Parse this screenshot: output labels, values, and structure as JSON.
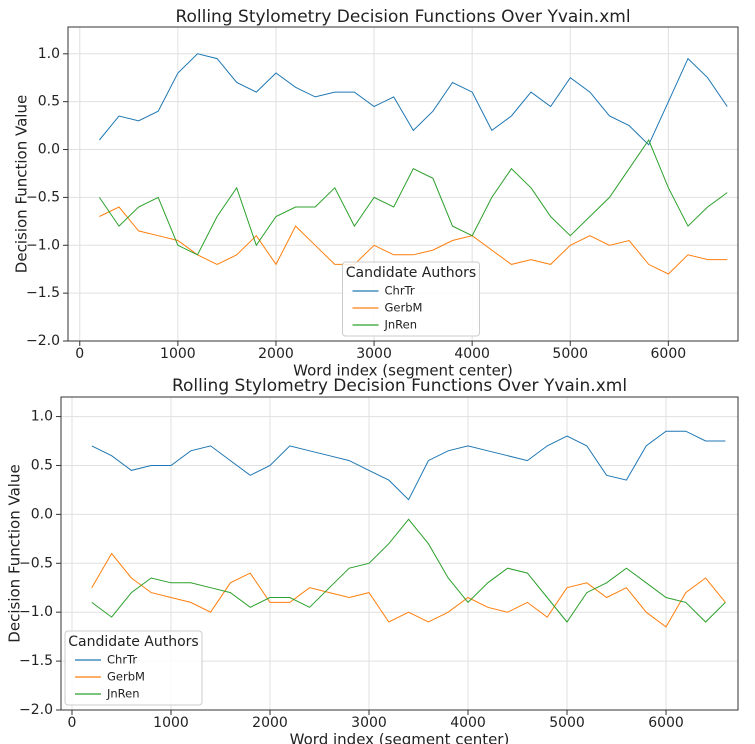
{
  "chart_data": [
    {
      "type": "line",
      "title": "Rolling Stylometry Decision Functions Over Yvain.xml",
      "x_label": "Word index (segment center)",
      "y_label": "Decision Function Value",
      "x": [
        200,
        400,
        600,
        800,
        1000,
        1200,
        1400,
        1600,
        1800,
        2000,
        2200,
        2400,
        2600,
        2800,
        3000,
        3200,
        3400,
        3600,
        3800,
        4000,
        4200,
        4400,
        4600,
        4800,
        5000,
        5200,
        5400,
        5600,
        5800,
        6000,
        6200,
        6400,
        6600
      ],
      "series": [
        {
          "name": "ChrTr",
          "color": "#1f77b4",
          "values": [
            0.1,
            0.35,
            0.3,
            0.4,
            0.8,
            1.0,
            0.95,
            0.7,
            0.6,
            0.8,
            0.65,
            0.55,
            0.6,
            0.6,
            0.45,
            0.55,
            0.2,
            0.4,
            0.7,
            0.6,
            0.2,
            0.35,
            0.6,
            0.45,
            0.75,
            0.6,
            0.35,
            0.25,
            0.05,
            0.5,
            0.95,
            0.75,
            0.45
          ]
        },
        {
          "name": "GerbM",
          "color": "#ff7f0e",
          "values": [
            -0.7,
            -0.6,
            -0.85,
            -0.9,
            -0.95,
            -1.1,
            -1.2,
            -1.1,
            -0.9,
            -1.2,
            -0.8,
            -1.0,
            -1.2,
            -1.2,
            -1.0,
            -1.1,
            -1.1,
            -1.05,
            -0.95,
            -0.9,
            -1.05,
            -1.2,
            -1.15,
            -1.2,
            -1.0,
            -0.9,
            -1.0,
            -0.95,
            -1.2,
            -1.3,
            -1.1,
            -1.15,
            -1.15
          ]
        },
        {
          "name": "JnRen",
          "color": "#2ca02c",
          "values": [
            -0.5,
            -0.8,
            -0.6,
            -0.5,
            -1.0,
            -1.1,
            -0.7,
            -0.4,
            -1.0,
            -0.7,
            -0.6,
            -0.6,
            -0.4,
            -0.8,
            -0.5,
            -0.6,
            -0.2,
            -0.3,
            -0.8,
            -0.9,
            -0.5,
            -0.2,
            -0.4,
            -0.7,
            -0.9,
            -0.7,
            -0.5,
            -0.2,
            0.1,
            -0.4,
            -0.8,
            -0.6,
            -0.45
          ]
        }
      ],
      "xlim": [
        -120,
        6710
      ],
      "xticks": [
        0,
        1000,
        2000,
        3000,
        4000,
        5000,
        6000
      ],
      "ylim": [
        -2.0,
        1.28
      ],
      "yticks": [
        {
          "value": -2.0,
          "label": "−2.0"
        },
        {
          "value": -1.5,
          "label": "−1.5"
        },
        {
          "value": -1.0,
          "label": "−1.0"
        },
        {
          "value": -0.5,
          "label": "−0.5"
        },
        {
          "value": 0,
          "label": "0.0"
        },
        0.5,
        {
          "value": 1.0,
          "label": "1.0"
        }
      ],
      "grid": true,
      "legend_title": "Candidate Authors",
      "legend_loc": "lower center"
    },
    {
      "type": "line",
      "title": "Rolling Stylometry Decision Functions Over Yvain.xml",
      "x_label": "Word index (segment center)",
      "y_label": "Decision Function Value",
      "x": [
        200,
        400,
        600,
        800,
        1000,
        1200,
        1400,
        1600,
        1800,
        2000,
        2200,
        2400,
        2600,
        2800,
        3000,
        3200,
        3400,
        3600,
        3800,
        4000,
        4200,
        4400,
        4600,
        4800,
        5000,
        5200,
        5400,
        5600,
        5800,
        6000,
        6200,
        6400,
        6600
      ],
      "series": [
        {
          "name": "ChrTr",
          "color": "#1f77b4",
          "values": [
            0.7,
            0.6,
            0.45,
            0.5,
            0.5,
            0.65,
            0.7,
            0.55,
            0.4,
            0.5,
            0.7,
            0.65,
            0.6,
            0.55,
            0.45,
            0.35,
            0.15,
            0.55,
            0.65,
            0.7,
            0.65,
            0.6,
            0.55,
            0.7,
            0.8,
            0.7,
            0.4,
            0.35,
            0.7,
            0.85,
            0.85,
            0.75,
            0.75
          ]
        },
        {
          "name": "GerbM",
          "color": "#ff7f0e",
          "values": [
            -0.75,
            -0.4,
            -0.65,
            -0.8,
            -0.85,
            -0.9,
            -1.0,
            -0.7,
            -0.6,
            -0.9,
            -0.9,
            -0.75,
            -0.8,
            -0.85,
            -0.8,
            -1.1,
            -1.0,
            -1.1,
            -1.0,
            -0.85,
            -0.95,
            -1.0,
            -0.9,
            -1.05,
            -0.75,
            -0.7,
            -0.85,
            -0.75,
            -1.0,
            -1.15,
            -0.8,
            -0.65,
            -0.9
          ]
        },
        {
          "name": "JnRen",
          "color": "#2ca02c",
          "values": [
            -0.9,
            -1.05,
            -0.8,
            -0.65,
            -0.7,
            -0.7,
            -0.75,
            -0.8,
            -0.95,
            -0.85,
            -0.85,
            -0.95,
            -0.75,
            -0.55,
            -0.5,
            -0.3,
            -0.05,
            -0.3,
            -0.65,
            -0.9,
            -0.7,
            -0.55,
            -0.6,
            -0.85,
            -1.1,
            -0.8,
            -0.7,
            -0.55,
            -0.7,
            -0.85,
            -0.9,
            -1.1,
            -0.9
          ]
        }
      ],
      "xlim": [
        -111,
        6727
      ],
      "xticks": [
        0,
        1000,
        2000,
        3000,
        4000,
        5000,
        6000
      ],
      "ylim": [
        -2.0,
        1.2
      ],
      "yticks": [
        {
          "value": -2.0,
          "label": "−2.0"
        },
        {
          "value": -1.5,
          "label": "−1.5"
        },
        {
          "value": -1.0,
          "label": "−1.0"
        },
        {
          "value": -0.5,
          "label": "−0.5"
        },
        {
          "value": 0,
          "label": "0.0"
        },
        0.5,
        {
          "value": 1.0,
          "label": "1.0"
        }
      ],
      "grid": true,
      "legend_title": "Candidate Authors",
      "legend_loc": "lower left"
    }
  ]
}
